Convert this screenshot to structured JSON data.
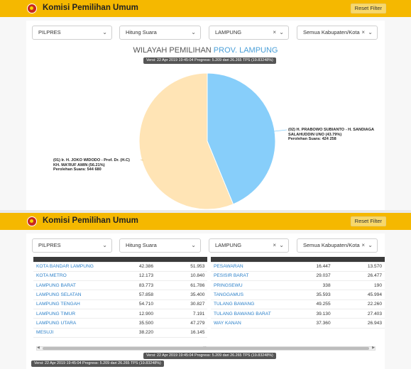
{
  "app": {
    "title": "Komisi Pemilihan Umum",
    "reset_label": "Reset Filter"
  },
  "filters": {
    "election": "PILPRES",
    "mode": "Hitung Suara",
    "province": "LAMPUNG",
    "district": "Semua Kabupaten/Kota"
  },
  "chart_header": {
    "prefix": "WILAYAH PEMILIHAN",
    "province": "PROV. LAMPUNG"
  },
  "version_text": "Versi: 22 Apr 2019 19:45:04 Progress: 5.209 dari 26.265 TPS (19.83248%)",
  "chart_data": {
    "type": "pie",
    "title": "WILAYAH PEMILIHAN PROV. LAMPUNG",
    "slices": [
      {
        "name": "(02) H. PRABOWO SUBIANTO - H. SANDIAGA SALAHUDDIN UNO (43.79%)",
        "value": 424258,
        "percent": 43.79,
        "color": "#87cefa"
      },
      {
        "name": "(01) Ir. H. JOKO WIDODO - Prof. Dr. (H.C) KH. MA'RUF AMIN (56.21%)",
        "value": 544680,
        "percent": 56.21,
        "color": "#ffe4b5"
      }
    ],
    "labels": {
      "s02_line1": "(02) H. PRABOWO SUBIANTO - H. SANDIAGA",
      "s02_line2": "SALAHUDDIN UNO (43.79%)",
      "s02_line3": "Perolehan Suara: 424 258",
      "s01_line1": "(01) Ir. H. JOKO WIDODO - Prof. Dr. (H.C)",
      "s01_line2": "KH. MA'RUF AMIN (56.21%)",
      "s01_line3": "Perolehan Suara: 544 680"
    }
  },
  "table": {
    "headers": [
      "WILAYAH",
      "(01) JOKO WIDODO",
      "(02) PRABOWO SUBIANTO",
      "WILAYAH",
      "(01) JOKO WIDODO",
      "(02) PRABOWO SUBIANTO"
    ],
    "left": [
      {
        "name": "KOTA BANDAR LAMPUNG",
        "v1": "42.386",
        "v2": "51.953"
      },
      {
        "name": "KOTA METRO",
        "v1": "12.173",
        "v2": "10.840"
      },
      {
        "name": "LAMPUNG BARAT",
        "v1": "83.773",
        "v2": "61.786"
      },
      {
        "name": "LAMPUNG SELATAN",
        "v1": "57.858",
        "v2": "35.400"
      },
      {
        "name": "LAMPUNG TENGAH",
        "v1": "54.710",
        "v2": "30.827"
      },
      {
        "name": "LAMPUNG TIMUR",
        "v1": "12.900",
        "v2": "7.191"
      },
      {
        "name": "LAMPUNG UTARA",
        "v1": "35.500",
        "v2": "47.279"
      },
      {
        "name": "MESUJI",
        "v1": "38.220",
        "v2": "16.145"
      }
    ],
    "right": [
      {
        "name": "PESAWARAN",
        "v1": "16.447",
        "v2": "13.570"
      },
      {
        "name": "PESISIR BARAT",
        "v1": "29.037",
        "v2": "26.477"
      },
      {
        "name": "PRINGSEWU",
        "v1": "338",
        "v2": "190"
      },
      {
        "name": "TANGGAMUS",
        "v1": "35.593",
        "v2": "45.994"
      },
      {
        "name": "TULANG BAWANG",
        "v1": "49.255",
        "v2": "22.260"
      },
      {
        "name": "TULANG BAWANG BARAT",
        "v1": "39.130",
        "v2": "27.403"
      },
      {
        "name": "WAY KANAN",
        "v1": "37.360",
        "v2": "26.943"
      }
    ]
  },
  "scroll_indicator": "...",
  "icons": [
    "logo-icon",
    "chevron-down-icon",
    "clear-icon",
    "scroll-left-icon",
    "scroll-right-icon"
  ],
  "colors": {
    "topbar": "#f5b800",
    "accent_blue": "#4a9fd8",
    "pie_01": "#ffe4b5",
    "pie_02": "#87cefa"
  }
}
